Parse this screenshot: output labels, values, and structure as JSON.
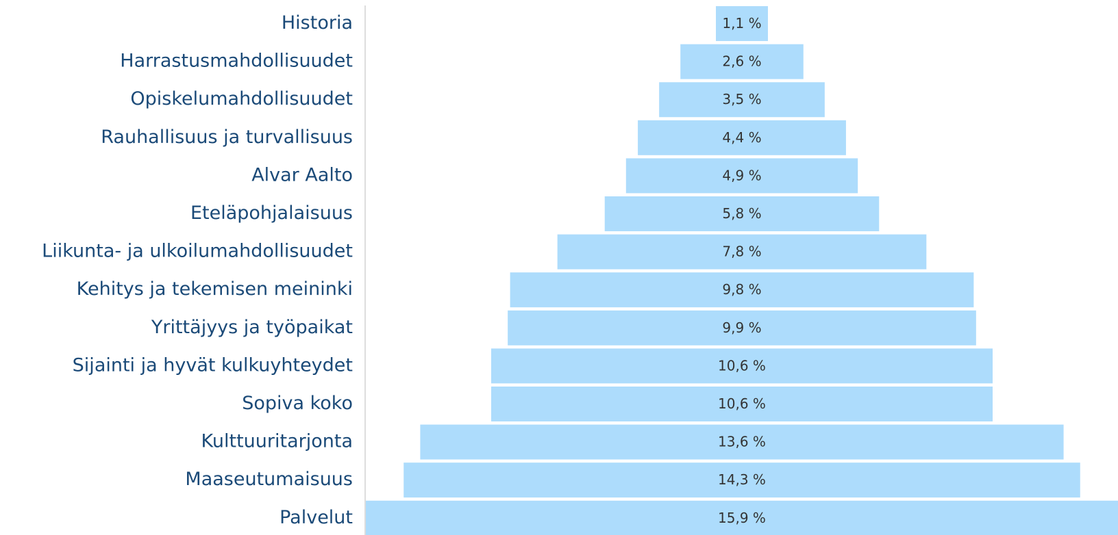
{
  "chart_data": {
    "type": "funnel",
    "color": "#addcfc",
    "categories": [
      "Historia",
      "Harrastusmahdollisuudet",
      "Opiskelumahdollisuudet",
      "Rauhallisuus ja turvallisuus",
      "Alvar Aalto",
      "Eteläpohjalaisuus",
      "Liikunta- ja ulkoilumahdollisuudet",
      "Kehitys ja tekemisen meininki",
      "Yrittäjyys ja työpaikat",
      "Sijainti ja hyvät kulkuyhteydet",
      "Sopiva koko",
      "Kulttuuritarjonta",
      "Maaseutumaisuus",
      "Palvelut"
    ],
    "values": [
      1.1,
      2.6,
      3.5,
      4.4,
      4.9,
      5.8,
      7.8,
      9.8,
      9.9,
      10.6,
      10.6,
      13.6,
      14.3,
      15.9
    ],
    "value_labels": [
      "1,1 %",
      "2,6 %",
      "3,5 %",
      "4,4 %",
      "4,9 %",
      "5,8 %",
      "7,8 %",
      "9,8 %",
      "9,9 %",
      "10,6 %",
      "10,6 %",
      "13,6 %",
      "14,3 %",
      "15,9 %"
    ]
  }
}
